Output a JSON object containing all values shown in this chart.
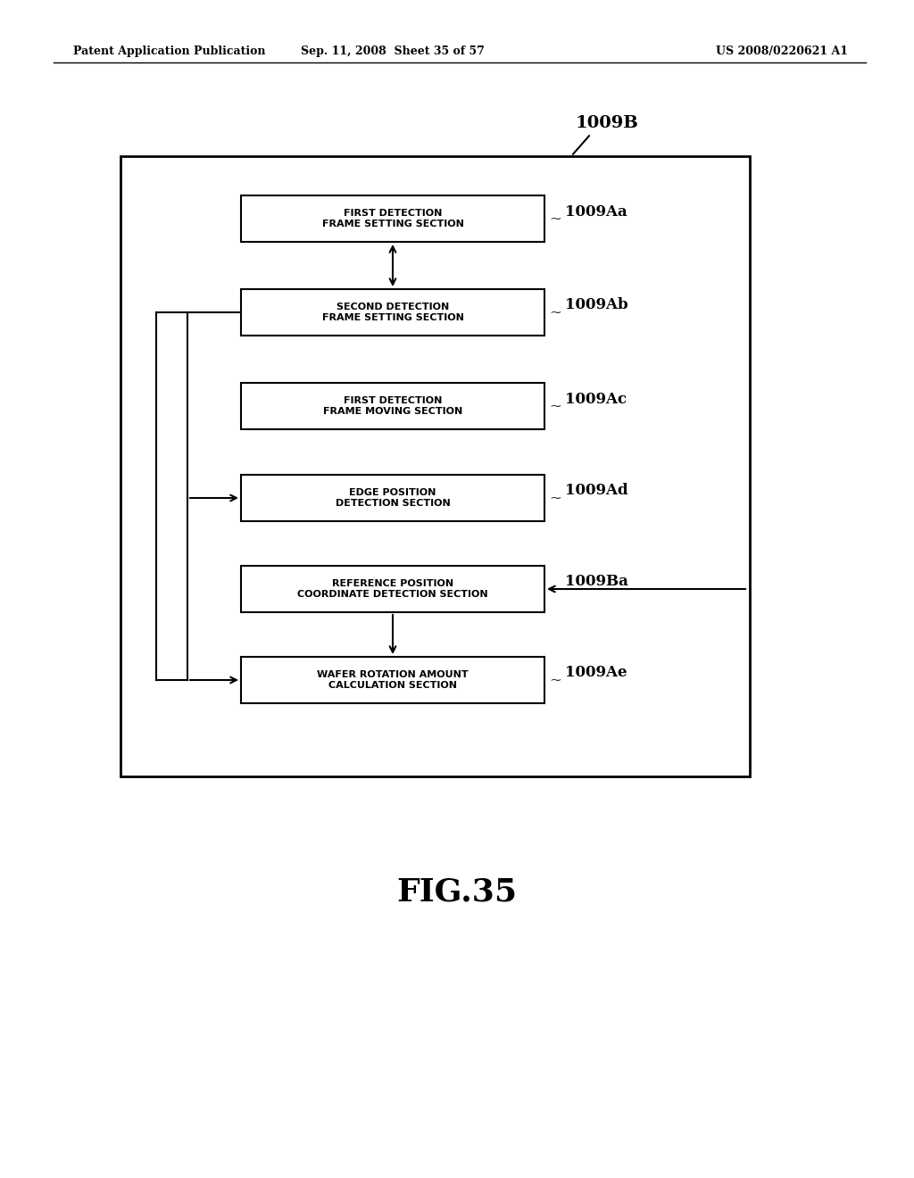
{
  "background_color": "#ffffff",
  "header_left": "Patent Application Publication",
  "header_center": "Sep. 11, 2008  Sheet 35 of 57",
  "header_right": "US 2008/0220621 A1",
  "figure_label": "FIG.35",
  "outer_box_label": "1009B",
  "boxes": [
    {
      "id": "Aa",
      "label": "FIRST DETECTION\nFRAME SETTING SECTION",
      "ref": "1009Aa"
    },
    {
      "id": "Ab",
      "label": "SECOND DETECTION\nFRAME SETTING SECTION",
      "ref": "1009Ab"
    },
    {
      "id": "Ac",
      "label": "FIRST DETECTION\nFRAME MOVING SECTION",
      "ref": "1009Ac"
    },
    {
      "id": "Ad",
      "label": "EDGE POSITION\nDETECTION SECTION",
      "ref": "1009Ad"
    },
    {
      "id": "Ba",
      "label": "REFERENCE POSITION\nCOORDINATE DETECTION SECTION",
      "ref": "1009Ba"
    },
    {
      "id": "Ae",
      "label": "WAFER ROTATION AMOUNT\nCALCULATION SECTION",
      "ref": "1009Ae"
    }
  ]
}
